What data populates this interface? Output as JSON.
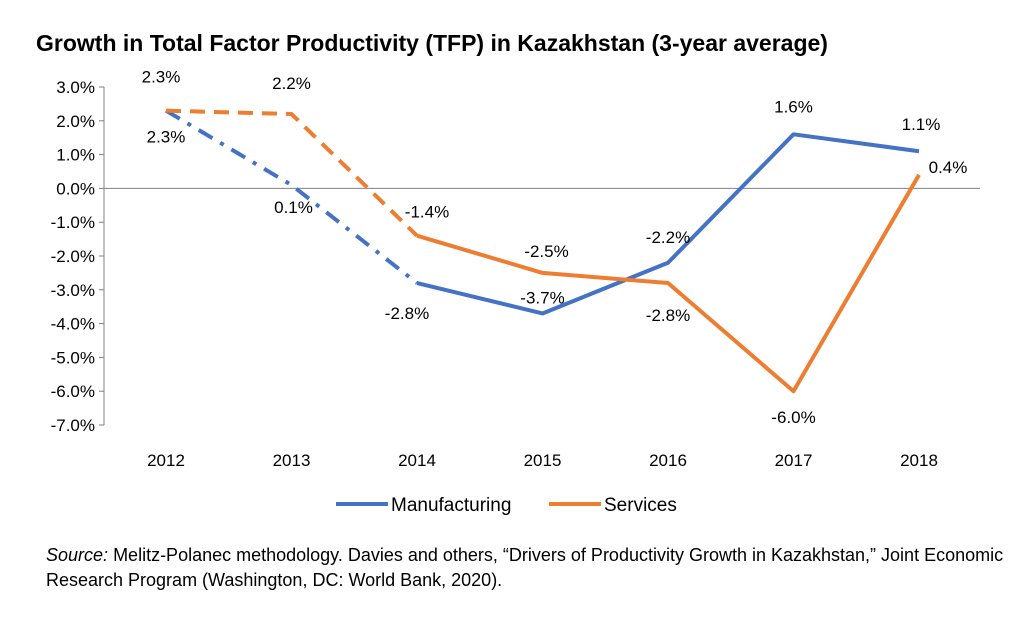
{
  "chart_data": {
    "type": "line",
    "title": "Growth in Total Factor Productivity (TFP) in Kazakhstan (3-year average)",
    "xlabel": "",
    "ylabel": "",
    "categories": [
      "2012",
      "2013",
      "2014",
      "2015",
      "2016",
      "2017",
      "2018"
    ],
    "ylim": [
      -7.0,
      3.0
    ],
    "yticks": [
      3.0,
      2.0,
      1.0,
      0.0,
      -1.0,
      -2.0,
      -3.0,
      -4.0,
      -5.0,
      -6.0,
      -7.0
    ],
    "ytick_labels": [
      "3.0%",
      "2.0%",
      "1.0%",
      "0.0%",
      "-1.0%",
      "-2.0%",
      "-3.0%",
      "-4.0%",
      "-5.0%",
      "-6.0%",
      "-7.0%"
    ],
    "grid": false,
    "legend_position": "bottom",
    "series": [
      {
        "name": "Manufacturing",
        "color": "#4472C4",
        "values": [
          2.3,
          0.1,
          -2.8,
          -3.7,
          -2.2,
          1.6,
          1.1
        ],
        "labels": [
          "2.3%",
          "0.1%",
          "-2.8%",
          "-3.7%",
          "-2.2%",
          "1.6%",
          "1.1%"
        ],
        "dashed_through_index": 2,
        "dash_style": "dash-dot"
      },
      {
        "name": "Services",
        "color": "#ED7D31",
        "values": [
          2.3,
          2.2,
          -1.4,
          -2.5,
          -2.8,
          -6.0,
          0.4
        ],
        "labels": [
          "2.3%",
          "2.2%",
          "-1.4%",
          "-2.5%",
          "-2.8%",
          "-6.0%",
          "0.4%"
        ],
        "dashed_through_index": 2,
        "dash_style": "dash"
      }
    ]
  },
  "source": {
    "label": "Source:",
    "text": "Melitz-Polanec methodology. Davies and others, “Drivers of Productivity Growth in Kazakhstan,” Joint Economic Research Program (Washington, DC: World Bank, 2020)."
  }
}
